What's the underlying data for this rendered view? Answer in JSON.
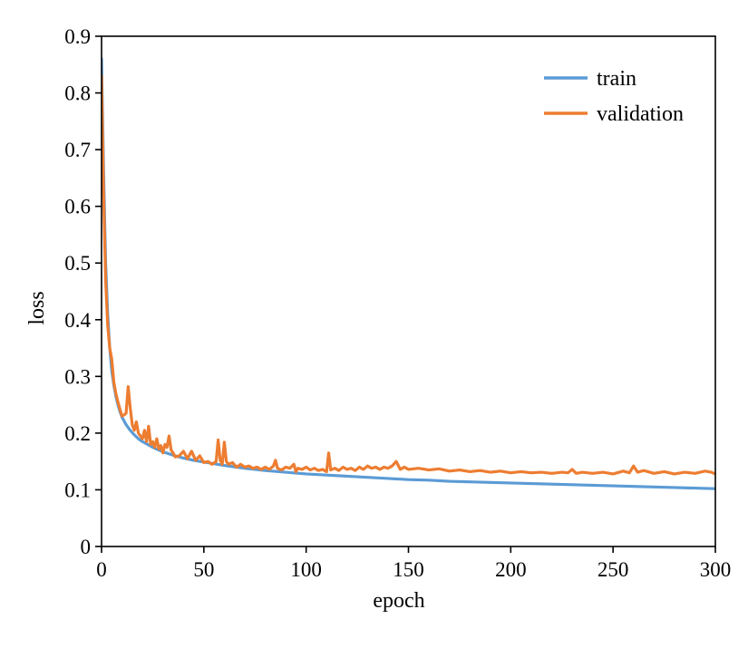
{
  "chart_data": {
    "type": "line",
    "xlabel": "epoch",
    "ylabel": "loss",
    "xlim": [
      0,
      300
    ],
    "ylim": [
      0,
      0.9
    ],
    "xticks": [
      "0",
      "50",
      "100",
      "150",
      "200",
      "250",
      "300"
    ],
    "yticks": [
      "0",
      "0.1",
      "0.2",
      "0.3",
      "0.4",
      "0.5",
      "0.6",
      "0.7",
      "0.8",
      "0.9"
    ],
    "grid": false,
    "legend_position": "top-right",
    "series": [
      {
        "name": "train",
        "color": "#5b9bd5",
        "points": [
          [
            0,
            0.86
          ],
          [
            1,
            0.66
          ],
          [
            2,
            0.5
          ],
          [
            3,
            0.41
          ],
          [
            4,
            0.35
          ],
          [
            5,
            0.31
          ],
          [
            6,
            0.285
          ],
          [
            7,
            0.265
          ],
          [
            8,
            0.25
          ],
          [
            9,
            0.238
          ],
          [
            10,
            0.228
          ],
          [
            12,
            0.215
          ],
          [
            14,
            0.205
          ],
          [
            16,
            0.197
          ],
          [
            18,
            0.19
          ],
          [
            20,
            0.185
          ],
          [
            25,
            0.175
          ],
          [
            30,
            0.167
          ],
          [
            35,
            0.161
          ],
          [
            40,
            0.156
          ],
          [
            45,
            0.152
          ],
          [
            50,
            0.149
          ],
          [
            60,
            0.143
          ],
          [
            70,
            0.138
          ],
          [
            80,
            0.134
          ],
          [
            90,
            0.131
          ],
          [
            100,
            0.128
          ],
          [
            110,
            0.126
          ],
          [
            120,
            0.124
          ],
          [
            130,
            0.122
          ],
          [
            140,
            0.12
          ],
          [
            150,
            0.118
          ],
          [
            160,
            0.117
          ],
          [
            170,
            0.115
          ],
          [
            180,
            0.114
          ],
          [
            190,
            0.113
          ],
          [
            200,
            0.112
          ],
          [
            210,
            0.111
          ],
          [
            220,
            0.11
          ],
          [
            230,
            0.109
          ],
          [
            240,
            0.108
          ],
          [
            250,
            0.107
          ],
          [
            260,
            0.106
          ],
          [
            270,
            0.105
          ],
          [
            280,
            0.104
          ],
          [
            290,
            0.103
          ],
          [
            300,
            0.102
          ]
        ]
      },
      {
        "name": "validation",
        "color": "#ed7d31",
        "points": [
          [
            0,
            0.83
          ],
          [
            1,
            0.62
          ],
          [
            2,
            0.47
          ],
          [
            3,
            0.39
          ],
          [
            4,
            0.35
          ],
          [
            5,
            0.33
          ],
          [
            6,
            0.29
          ],
          [
            7,
            0.27
          ],
          [
            8,
            0.255
          ],
          [
            9,
            0.242
          ],
          [
            10,
            0.23
          ],
          [
            11,
            0.232
          ],
          [
            12,
            0.235
          ],
          [
            13,
            0.282
          ],
          [
            14,
            0.245
          ],
          [
            15,
            0.215
          ],
          [
            16,
            0.205
          ],
          [
            17,
            0.22
          ],
          [
            18,
            0.2
          ],
          [
            19,
            0.195
          ],
          [
            20,
            0.19
          ],
          [
            21,
            0.205
          ],
          [
            22,
            0.185
          ],
          [
            23,
            0.212
          ],
          [
            24,
            0.18
          ],
          [
            25,
            0.185
          ],
          [
            26,
            0.175
          ],
          [
            27,
            0.19
          ],
          [
            28,
            0.172
          ],
          [
            29,
            0.178
          ],
          [
            30,
            0.165
          ],
          [
            31,
            0.18
          ],
          [
            32,
            0.175
          ],
          [
            33,
            0.195
          ],
          [
            34,
            0.17
          ],
          [
            35,
            0.165
          ],
          [
            36,
            0.158
          ],
          [
            38,
            0.16
          ],
          [
            40,
            0.168
          ],
          [
            42,
            0.155
          ],
          [
            44,
            0.168
          ],
          [
            46,
            0.152
          ],
          [
            48,
            0.16
          ],
          [
            50,
            0.148
          ],
          [
            52,
            0.15
          ],
          [
            54,
            0.145
          ],
          [
            56,
            0.15
          ],
          [
            57,
            0.188
          ],
          [
            58,
            0.152
          ],
          [
            59,
            0.145
          ],
          [
            60,
            0.184
          ],
          [
            61,
            0.15
          ],
          [
            62,
            0.145
          ],
          [
            64,
            0.148
          ],
          [
            66,
            0.14
          ],
          [
            68,
            0.145
          ],
          [
            70,
            0.14
          ],
          [
            72,
            0.142
          ],
          [
            74,
            0.138
          ],
          [
            76,
            0.14
          ],
          [
            78,
            0.136
          ],
          [
            80,
            0.14
          ],
          [
            82,
            0.136
          ],
          [
            84,
            0.142
          ],
          [
            85,
            0.152
          ],
          [
            86,
            0.138
          ],
          [
            88,
            0.135
          ],
          [
            90,
            0.14
          ],
          [
            92,
            0.138
          ],
          [
            94,
            0.145
          ],
          [
            95,
            0.132
          ],
          [
            96,
            0.138
          ],
          [
            98,
            0.136
          ],
          [
            100,
            0.14
          ],
          [
            102,
            0.135
          ],
          [
            104,
            0.138
          ],
          [
            106,
            0.134
          ],
          [
            108,
            0.136
          ],
          [
            110,
            0.132
          ],
          [
            111,
            0.165
          ],
          [
            112,
            0.135
          ],
          [
            114,
            0.138
          ],
          [
            116,
            0.134
          ],
          [
            118,
            0.14
          ],
          [
            120,
            0.136
          ],
          [
            122,
            0.138
          ],
          [
            124,
            0.134
          ],
          [
            126,
            0.14
          ],
          [
            128,
            0.136
          ],
          [
            130,
            0.142
          ],
          [
            132,
            0.138
          ],
          [
            134,
            0.14
          ],
          [
            136,
            0.136
          ],
          [
            138,
            0.14
          ],
          [
            140,
            0.138
          ],
          [
            142,
            0.142
          ],
          [
            144,
            0.15
          ],
          [
            146,
            0.136
          ],
          [
            148,
            0.14
          ],
          [
            150,
            0.136
          ],
          [
            155,
            0.138
          ],
          [
            160,
            0.135
          ],
          [
            165,
            0.137
          ],
          [
            170,
            0.133
          ],
          [
            175,
            0.135
          ],
          [
            180,
            0.132
          ],
          [
            185,
            0.134
          ],
          [
            190,
            0.131
          ],
          [
            195,
            0.133
          ],
          [
            200,
            0.13
          ],
          [
            205,
            0.132
          ],
          [
            210,
            0.13
          ],
          [
            215,
            0.131
          ],
          [
            220,
            0.129
          ],
          [
            225,
            0.131
          ],
          [
            228,
            0.13
          ],
          [
            230,
            0.136
          ],
          [
            232,
            0.129
          ],
          [
            235,
            0.131
          ],
          [
            240,
            0.129
          ],
          [
            245,
            0.131
          ],
          [
            250,
            0.128
          ],
          [
            255,
            0.133
          ],
          [
            258,
            0.13
          ],
          [
            260,
            0.142
          ],
          [
            262,
            0.131
          ],
          [
            265,
            0.134
          ],
          [
            270,
            0.129
          ],
          [
            275,
            0.132
          ],
          [
            280,
            0.128
          ],
          [
            285,
            0.131
          ],
          [
            290,
            0.129
          ],
          [
            295,
            0.133
          ],
          [
            298,
            0.131
          ],
          [
            300,
            0.128
          ]
        ]
      }
    ]
  }
}
